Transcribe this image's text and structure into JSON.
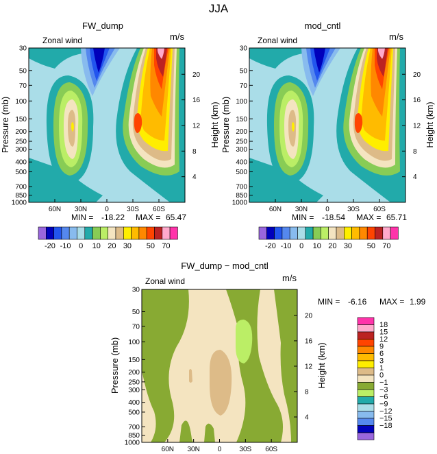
{
  "figure_title": "JJA",
  "colors": {
    "cb1": [
      "#9966dd",
      "#0000bb",
      "#2255ee",
      "#5588ee",
      "#88bbee",
      "#aadde8",
      "#22aaaa",
      "#88cc55",
      "#bbee66",
      "#f4e4c0",
      "#ddbb88",
      "#ffee00",
      "#ffbb00",
      "#ff8800",
      "#ff4400",
      "#bb2222",
      "#ffaacc",
      "#ff33aa"
    ],
    "cb2": [
      "#ff33aa",
      "#ffaacc",
      "#bb2222",
      "#ff4400",
      "#ff8800",
      "#ffbb00",
      "#ffee00",
      "#ddbb88",
      "#f4e4c0",
      "#88aa33",
      "#bbee66",
      "#22aaaa",
      "#aadde8",
      "#88bbee",
      "#5588ee",
      "#0000bb",
      "#9966dd"
    ],
    "frame": "#000000",
    "panel_bg_top": "#aadde8",
    "panel_bg_bottom": "#f4e4c0"
  },
  "chart_data": [
    {
      "type": "contour",
      "title": "FW_dump",
      "variable_label": "Zonal wind",
      "units": "m/s",
      "ylabel": "Pressure (mb)",
      "y2label": "Height (km)",
      "x_ticks": [
        "60N",
        "30N",
        "0",
        "30S",
        "60S"
      ],
      "x_values": [
        60,
        30,
        0,
        -30,
        -60
      ],
      "y_ticks": [
        "30",
        "50",
        "70",
        "100",
        "150",
        "200",
        "250",
        "300",
        "400",
        "500",
        "700",
        "850",
        "1000"
      ],
      "y_values": [
        30,
        50,
        70,
        100,
        150,
        200,
        250,
        300,
        400,
        500,
        700,
        850,
        1000
      ],
      "y2_ticks": [
        "4",
        "8",
        "12",
        "16",
        "20"
      ],
      "stats": {
        "min_label": "MIN = ",
        "min": "-18.22",
        "max_label": "MAX = ",
        "max": "65.47"
      },
      "colorbar_ticks": [
        "-20",
        "-10",
        "0",
        "10",
        "20",
        "30",
        "50",
        "70"
      ]
    },
    {
      "type": "contour",
      "title": "mod_cntl",
      "variable_label": "Zonal wind",
      "units": "m/s",
      "ylabel": "Pressure (mb)",
      "y2label": "Height (km)",
      "x_ticks": [
        "60N",
        "30N",
        "0",
        "30S",
        "60S"
      ],
      "x_values": [
        60,
        30,
        0,
        -30,
        -60
      ],
      "y_ticks": [
        "30",
        "50",
        "70",
        "100",
        "150",
        "200",
        "250",
        "300",
        "400",
        "500",
        "700",
        "850",
        "1000"
      ],
      "y_values": [
        30,
        50,
        70,
        100,
        150,
        200,
        250,
        300,
        400,
        500,
        700,
        850,
        1000
      ],
      "y2_ticks": [
        "4",
        "8",
        "12",
        "16",
        "20"
      ],
      "stats": {
        "min_label": "MIN = ",
        "min": "-18.54",
        "max_label": "MAX = ",
        "max": "65.71"
      },
      "colorbar_ticks": [
        "-20",
        "-10",
        "0",
        "10",
        "20",
        "30",
        "50",
        "70"
      ]
    },
    {
      "type": "contour",
      "title": "FW_dump − mod_cntl",
      "variable_label": "Zonal wind",
      "units": "m/s",
      "ylabel": "Pressure (mb)",
      "y2label": "Height (km)",
      "x_ticks": [
        "60N",
        "30N",
        "0",
        "30S",
        "60S"
      ],
      "x_values": [
        60,
        30,
        0,
        -30,
        -60
      ],
      "y_ticks": [
        "30",
        "50",
        "70",
        "100",
        "150",
        "200",
        "250",
        "300",
        "400",
        "500",
        "700",
        "850",
        "1000"
      ],
      "y_values": [
        30,
        50,
        70,
        100,
        150,
        200,
        250,
        300,
        400,
        500,
        700,
        850,
        1000
      ],
      "y2_ticks": [
        "4",
        "8",
        "12",
        "16",
        "20"
      ],
      "stats": {
        "min_label": "MIN = ",
        "min": "-6.16",
        "max_label": "MAX = ",
        "max": "1.99"
      },
      "colorbar_ticks": [
        "18",
        "15",
        "12",
        "9",
        "6",
        "3",
        "1",
        "0",
        "−1",
        "−3",
        "−6",
        "−9",
        "−12",
        "−15",
        "−18"
      ]
    }
  ]
}
